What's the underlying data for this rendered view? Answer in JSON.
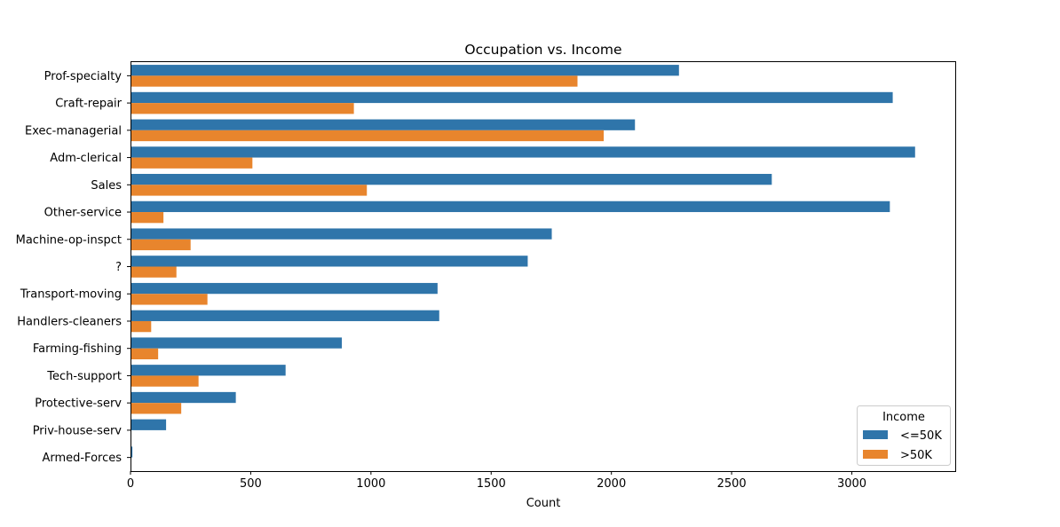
{
  "chart_data": {
    "type": "bar",
    "orientation": "horizontal",
    "title": "Occupation vs. Income",
    "xlabel": "Count",
    "ylabel": "",
    "xlim": [
      0,
      3430
    ],
    "xticks": [
      0,
      500,
      1000,
      1500,
      2000,
      2500,
      3000
    ],
    "xtick_labels": [
      "0",
      "500",
      "1000",
      "1500",
      "2000",
      "2500",
      "3000"
    ],
    "categories": [
      "Prof-specialty",
      "Craft-repair",
      "Exec-managerial",
      "Adm-clerical",
      "Sales",
      "Other-service",
      "Machine-op-inspct",
      "?",
      "Transport-moving",
      "Handlers-cleaners",
      "Farming-fishing",
      "Tech-support",
      "Protective-serv",
      "Priv-house-serv",
      "Armed-Forces"
    ],
    "series": [
      {
        "name": "<=50K",
        "color": "#2f75aa",
        "values": [
          2281,
          3170,
          2098,
          3263,
          2667,
          3158,
          1752,
          1652,
          1277,
          1284,
          879,
          645,
          438,
          148,
          8
        ]
      },
      {
        "name": ">50K",
        "color": "#e8852d",
        "values": [
          1859,
          929,
          1968,
          507,
          983,
          137,
          250,
          191,
          320,
          86,
          115,
          283,
          211,
          1,
          1
        ]
      }
    ],
    "grid": false,
    "legend": {
      "title": "Income",
      "placement": "lower-right"
    }
  }
}
